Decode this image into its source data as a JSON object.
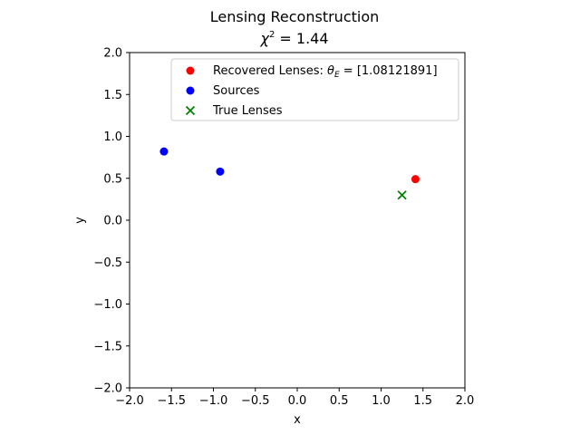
{
  "chart_data": {
    "type": "scatter",
    "title": "Lensing Reconstruction",
    "subtitle_prefix": "χ",
    "subtitle_sup": "2",
    "subtitle_value": " = 1.44",
    "xlabel": "x",
    "ylabel": "y",
    "xlim": [
      -2.0,
      2.0
    ],
    "ylim": [
      -2.0,
      2.0
    ],
    "xticks": [
      -2.0,
      -1.5,
      -1.0,
      -0.5,
      0.0,
      0.5,
      1.0,
      1.5,
      2.0
    ],
    "yticks": [
      -2.0,
      -1.5,
      -1.0,
      -0.5,
      0.0,
      0.5,
      1.0,
      1.5,
      2.0
    ],
    "xtick_labels": [
      "−2.0",
      "−1.5",
      "−1.0",
      "−0.5",
      "0.0",
      "0.5",
      "1.0",
      "1.5",
      "2.0"
    ],
    "ytick_labels": [
      "−2.0",
      "−1.5",
      "−1.0",
      "−0.5",
      "0.0",
      "0.5",
      "1.0",
      "1.5",
      "2.0"
    ],
    "grid": false,
    "legend_position": "top-right",
    "series": [
      {
        "name": "Recovered Lenses: θ_E = [1.08121891]",
        "legend_prefix": "Recovered Lenses: ",
        "legend_theta": "θ",
        "legend_sub": "E",
        "legend_suffix": " = [1.08121891]",
        "marker": "circle",
        "color": "#ff0000",
        "points": [
          {
            "x": 1.41,
            "y": 0.49
          }
        ]
      },
      {
        "name": "Sources",
        "legend_label": "Sources",
        "marker": "circle",
        "color": "#0000ff",
        "points": [
          {
            "x": -1.59,
            "y": 0.82
          },
          {
            "x": -0.92,
            "y": 0.58
          }
        ]
      },
      {
        "name": "True Lenses",
        "legend_label": "True Lenses",
        "marker": "x",
        "color": "#008000",
        "points": [
          {
            "x": 1.25,
            "y": 0.3
          }
        ]
      }
    ]
  }
}
